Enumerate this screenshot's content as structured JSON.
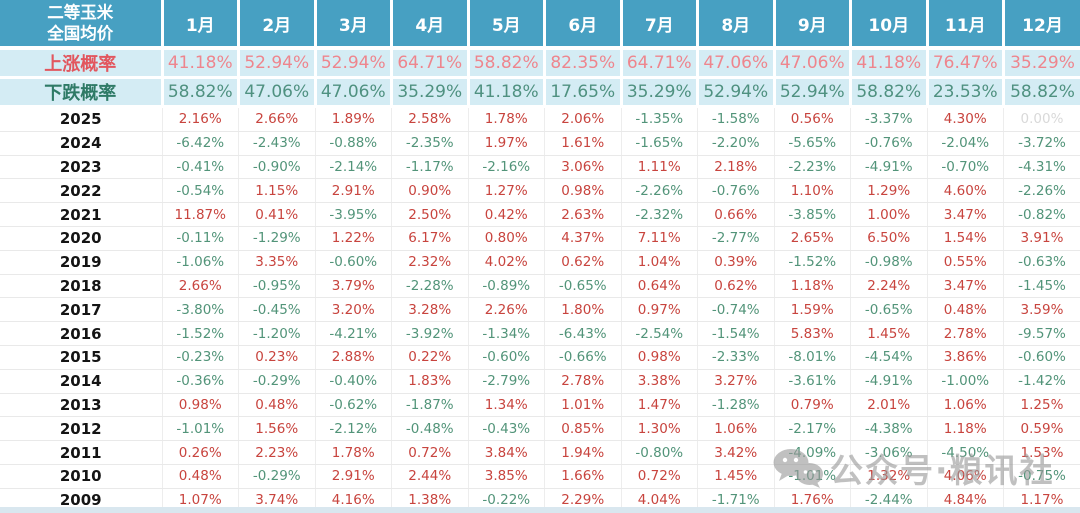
{
  "chart_data": {
    "type": "table",
    "title_line1": "二等玉米",
    "title_line2": "全国均价",
    "months": [
      "1月",
      "2月",
      "3月",
      "4月",
      "5月",
      "6月",
      "7月",
      "8月",
      "9月",
      "10月",
      "11月",
      "12月"
    ],
    "rise_probability": {
      "label": "上涨概率",
      "values": [
        "41.18%",
        "52.94%",
        "52.94%",
        "64.71%",
        "58.82%",
        "82.35%",
        "64.71%",
        "47.06%",
        "47.06%",
        "41.18%",
        "76.47%",
        "35.29%"
      ]
    },
    "fall_probability": {
      "label": "下跌概率",
      "values": [
        "58.82%",
        "47.06%",
        "47.06%",
        "35.29%",
        "41.18%",
        "17.65%",
        "35.29%",
        "52.94%",
        "52.94%",
        "58.82%",
        "23.53%",
        "58.82%"
      ]
    },
    "years": [
      {
        "year": "2025",
        "values": [
          "2.16%",
          "2.66%",
          "1.89%",
          "2.58%",
          "1.78%",
          "2.06%",
          "-1.35%",
          "-1.58%",
          "0.56%",
          "-3.37%",
          "4.30%",
          "0.00%"
        ]
      },
      {
        "year": "2024",
        "values": [
          "-6.42%",
          "-2.43%",
          "-0.88%",
          "-2.35%",
          "1.97%",
          "1.61%",
          "-1.65%",
          "-2.20%",
          "-5.65%",
          "-0.76%",
          "-2.04%",
          "-3.72%"
        ]
      },
      {
        "year": "2023",
        "values": [
          "-0.41%",
          "-0.90%",
          "-2.14%",
          "-1.17%",
          "-2.16%",
          "3.06%",
          "1.11%",
          "2.18%",
          "-2.23%",
          "-4.91%",
          "-0.70%",
          "-4.31%"
        ]
      },
      {
        "year": "2022",
        "values": [
          "-0.54%",
          "1.15%",
          "2.91%",
          "0.90%",
          "1.27%",
          "0.98%",
          "-2.26%",
          "-0.76%",
          "1.10%",
          "1.29%",
          "4.60%",
          "-2.26%"
        ]
      },
      {
        "year": "2021",
        "values": [
          "11.87%",
          "0.41%",
          "-3.95%",
          "2.50%",
          "0.42%",
          "2.63%",
          "-2.32%",
          "0.66%",
          "-3.85%",
          "1.00%",
          "3.47%",
          "-0.82%"
        ]
      },
      {
        "year": "2020",
        "values": [
          "-0.11%",
          "-1.29%",
          "1.22%",
          "6.17%",
          "0.80%",
          "4.37%",
          "7.11%",
          "-2.77%",
          "2.65%",
          "6.50%",
          "1.54%",
          "3.91%"
        ]
      },
      {
        "year": "2019",
        "values": [
          "-1.06%",
          "3.35%",
          "-0.60%",
          "2.32%",
          "4.02%",
          "0.62%",
          "1.04%",
          "0.39%",
          "-1.52%",
          "-0.98%",
          "0.55%",
          "-0.63%"
        ]
      },
      {
        "year": "2018",
        "values": [
          "2.66%",
          "-0.95%",
          "3.79%",
          "-2.28%",
          "-0.89%",
          "-0.65%",
          "0.64%",
          "0.62%",
          "1.18%",
          "2.24%",
          "3.47%",
          "-1.45%"
        ]
      },
      {
        "year": "2017",
        "values": [
          "-3.80%",
          "-0.45%",
          "3.20%",
          "3.28%",
          "2.26%",
          "1.80%",
          "0.97%",
          "-0.74%",
          "1.59%",
          "-0.65%",
          "0.48%",
          "3.59%"
        ]
      },
      {
        "year": "2016",
        "values": [
          "-1.52%",
          "-1.20%",
          "-4.21%",
          "-3.92%",
          "-1.34%",
          "-6.43%",
          "-2.54%",
          "-1.54%",
          "5.83%",
          "1.45%",
          "2.78%",
          "-9.57%"
        ]
      },
      {
        "year": "2015",
        "values": [
          "-0.23%",
          "0.23%",
          "2.88%",
          "0.22%",
          "-0.60%",
          "-0.66%",
          "0.98%",
          "-2.33%",
          "-8.01%",
          "-4.54%",
          "3.86%",
          "-0.60%"
        ]
      },
      {
        "year": "2014",
        "values": [
          "-0.36%",
          "-0.29%",
          "-0.40%",
          "1.83%",
          "-2.79%",
          "2.78%",
          "3.38%",
          "3.27%",
          "-3.61%",
          "-4.91%",
          "-1.00%",
          "-1.42%"
        ]
      },
      {
        "year": "2013",
        "values": [
          "0.98%",
          "0.48%",
          "-0.62%",
          "-1.87%",
          "1.34%",
          "1.01%",
          "1.47%",
          "-1.28%",
          "0.79%",
          "2.01%",
          "1.06%",
          "1.25%"
        ]
      },
      {
        "year": "2012",
        "values": [
          "-1.01%",
          "1.56%",
          "-2.12%",
          "-0.48%",
          "-0.43%",
          "0.85%",
          "1.30%",
          "1.06%",
          "-2.17%",
          "-4.38%",
          "1.18%",
          "0.59%"
        ]
      },
      {
        "year": "2011",
        "values": [
          "0.26%",
          "2.23%",
          "1.78%",
          "0.72%",
          "3.84%",
          "1.94%",
          "-0.80%",
          "3.42%",
          "-4.09%",
          "-3.06%",
          "-4.50%",
          "1.53%"
        ]
      },
      {
        "year": "2010",
        "values": [
          "0.48%",
          "-0.29%",
          "2.91%",
          "2.44%",
          "3.85%",
          "1.66%",
          "0.72%",
          "1.45%",
          "-1.01%",
          "1.32%",
          "4.06%",
          "-0.75%"
        ]
      },
      {
        "year": "2009",
        "values": [
          "1.07%",
          "3.74%",
          "4.16%",
          "1.38%",
          "-0.22%",
          "2.29%",
          "4.04%",
          "-1.71%",
          "1.76%",
          "-2.44%",
          "4.84%",
          "1.17%"
        ]
      }
    ]
  },
  "watermark": {
    "text": "公众号·粮讯社"
  },
  "colors": {
    "header_bg": "#47a0c2",
    "prob_row_bg": "#d4ecf4",
    "rise_label": "#e2565e",
    "rise_value": "#ee858d",
    "fall_label": "#2e7a66",
    "fall_value": "#4f9180",
    "positive_value": "#c8443e",
    "negative_value": "#529479",
    "zero_value": "#d9d9d9"
  }
}
